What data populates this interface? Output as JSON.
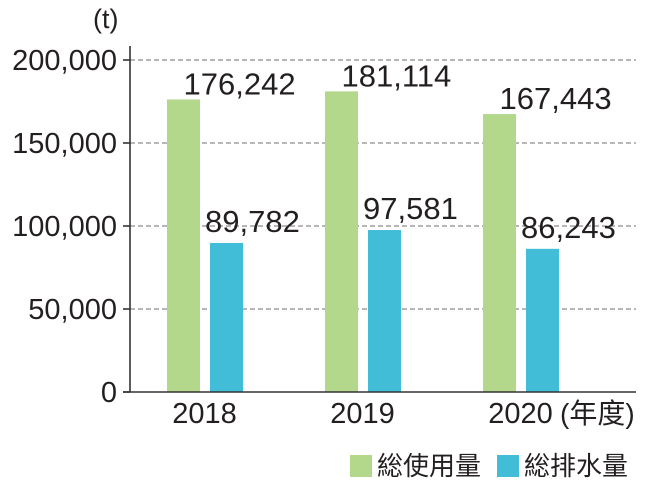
{
  "chart_data": {
    "type": "bar",
    "ylabel": "(t)",
    "xlabel": "(年度)",
    "categories": [
      "2018",
      "2019",
      "2020"
    ],
    "ylim": [
      0,
      200000
    ],
    "yticks": [
      0,
      50000,
      100000,
      150000,
      200000
    ],
    "ytick_labels": [
      "0",
      "50,000",
      "100,000",
      "150,000",
      "200,000"
    ],
    "grid": true,
    "legend": "bottom-right",
    "series": [
      {
        "name": "総使用量",
        "color": "#b3d88b",
        "values": [
          176242,
          181114,
          167443
        ],
        "labels": [
          "176,242",
          "181,114",
          "167,443"
        ]
      },
      {
        "name": "総排水量",
        "color": "#41bdd8",
        "values": [
          89782,
          97581,
          86243
        ],
        "labels": [
          "89,782",
          "97,581",
          "86,243"
        ]
      }
    ]
  }
}
